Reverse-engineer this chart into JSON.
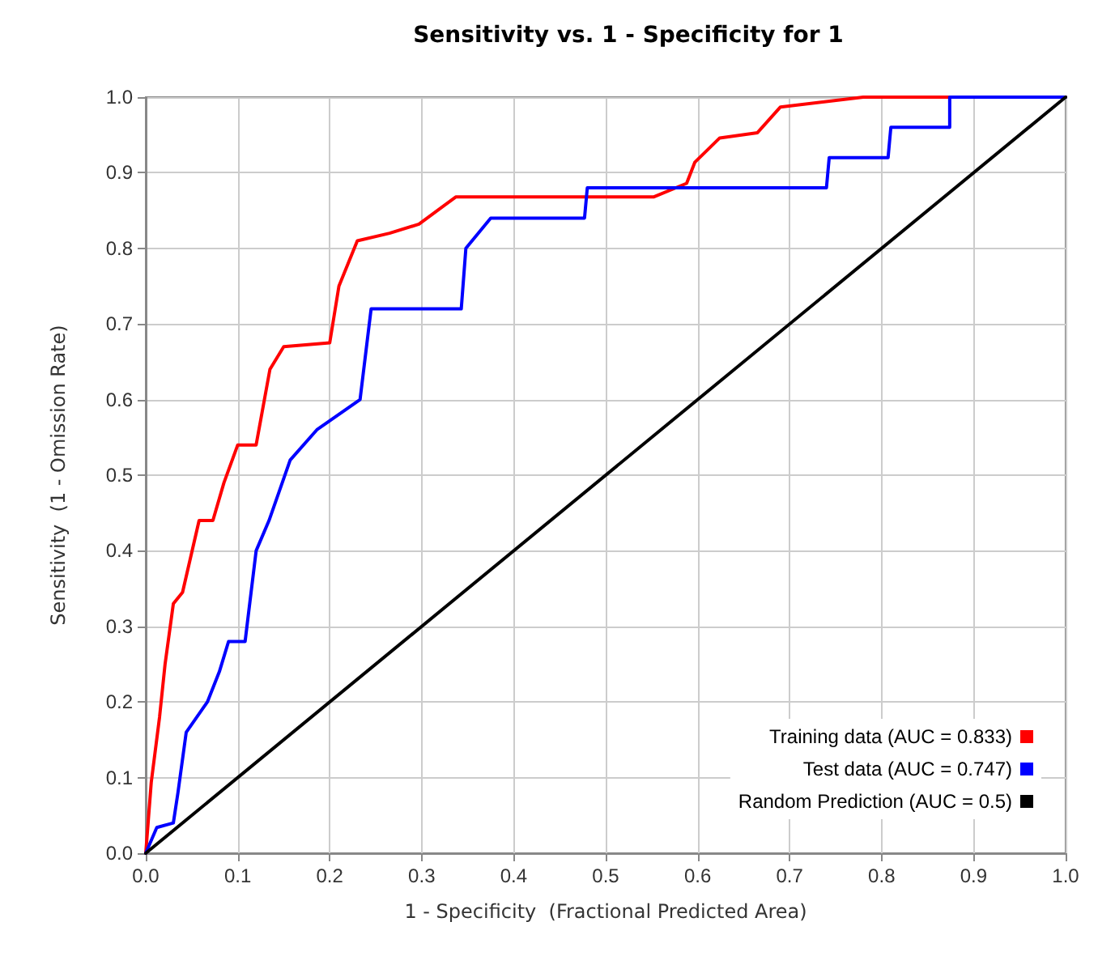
{
  "chart_data": {
    "type": "line",
    "title": "Sensitivity vs. 1 - Specificity for 1",
    "xlabel": "1 - Specificity  (Fractional Predicted Area)",
    "ylabel": "Sensitivity  (1 - Omission Rate)",
    "xlim": [
      0,
      1
    ],
    "ylim": [
      0,
      1
    ],
    "xticks": [
      {
        "value": 0,
        "label": "0.0"
      },
      0.1,
      0.2,
      0.3,
      0.4,
      0.5,
      0.6,
      0.7,
      0.8,
      0.9,
      {
        "value": 1,
        "label": "1.0"
      }
    ],
    "yticks": [
      {
        "value": 0,
        "label": "0.0"
      },
      0.1,
      0.2,
      0.3,
      0.4,
      0.5,
      0.6,
      0.7,
      0.8,
      0.9,
      {
        "value": 1,
        "label": "1.0"
      }
    ],
    "grid": true,
    "legend": "bottom right",
    "marker": "none",
    "line_style": "solid",
    "series": [
      {
        "name": "Training data (AUC = 0.833)",
        "color": "#ff0000",
        "x": [
          0,
          0.006,
          0.015,
          0.021,
          0.03,
          0.04,
          0.058,
          0.073,
          0.085,
          0.1,
          0.12,
          0.135,
          0.15,
          0.2,
          0.21,
          0.23,
          0.265,
          0.297,
          0.337,
          0.552,
          0.588,
          0.597,
          0.624,
          0.665,
          0.69,
          0.78,
          1
        ],
        "values": [
          0,
          0.094,
          0.18,
          0.25,
          0.33,
          0.345,
          0.44,
          0.44,
          0.49,
          0.54,
          0.54,
          0.64,
          0.67,
          0.675,
          0.75,
          0.81,
          0.82,
          0.832,
          0.868,
          0.868,
          0.886,
          0.914,
          0.946,
          0.953,
          0.987,
          1,
          1
        ]
      },
      {
        "name": "Test data (AUC = 0.747)",
        "color": "#0000ff",
        "x": [
          0,
          0.012,
          0.03,
          0.035,
          0.044,
          0.067,
          0.08,
          0.09,
          0.108,
          0.12,
          0.134,
          0.157,
          0.186,
          0.233,
          0.245,
          0.343,
          0.348,
          0.375,
          0.477,
          0.48,
          0.74,
          0.743,
          0.807,
          0.81,
          0.874,
          0.874,
          1
        ],
        "values": [
          0,
          0.034,
          0.04,
          0.08,
          0.16,
          0.2,
          0.24,
          0.28,
          0.28,
          0.4,
          0.44,
          0.52,
          0.56,
          0.6,
          0.72,
          0.72,
          0.8,
          0.84,
          0.84,
          0.88,
          0.88,
          0.92,
          0.92,
          0.96,
          0.96,
          1,
          1
        ]
      },
      {
        "name": "Random Prediction (AUC = 0.5)",
        "color": "#000000",
        "x": [
          0,
          1
        ],
        "values": [
          0,
          1
        ]
      }
    ]
  }
}
